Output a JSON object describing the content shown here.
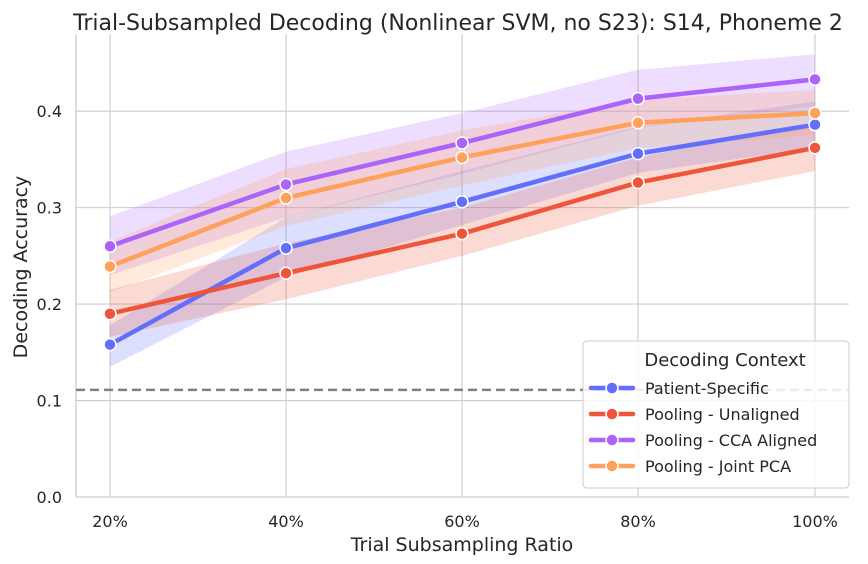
{
  "chart_data": {
    "type": "line",
    "title": "Trial-Subsampled Decoding (Nonlinear SVM, no S23): S14, Phoneme 2",
    "xlabel": "Trial Subsampling Ratio",
    "ylabel": "Decoding Accuracy",
    "categories": [
      "20%",
      "40%",
      "60%",
      "80%",
      "100%"
    ],
    "ylim": [
      0,
      0.48
    ],
    "yticks": [
      0.0,
      0.1,
      0.2,
      0.3,
      0.4
    ],
    "ytick_labels": [
      "0.0",
      "0.1",
      "0.2",
      "0.3",
      "0.4"
    ],
    "grid": true,
    "chance_line": 0.111,
    "legend": {
      "title": "Decoding Context",
      "placement": "lower-right"
    },
    "series": [
      {
        "name": "Patient-Specific",
        "color": "#636EFA",
        "values": [
          0.158,
          0.258,
          0.306,
          0.356,
          0.386
        ],
        "lower": [
          0.135,
          0.228,
          0.282,
          0.336,
          0.362
        ],
        "upper": [
          0.178,
          0.29,
          0.338,
          0.384,
          0.41
        ]
      },
      {
        "name": "Pooling - Unaligned",
        "color": "#EF553B",
        "values": [
          0.19,
          0.232,
          0.273,
          0.326,
          0.362
        ],
        "lower": [
          0.166,
          0.205,
          0.25,
          0.302,
          0.338
        ],
        "upper": [
          0.215,
          0.263,
          0.3,
          0.352,
          0.388
        ]
      },
      {
        "name": "Pooling - CCA Aligned",
        "color": "#AB63FA",
        "values": [
          0.26,
          0.324,
          0.367,
          0.413,
          0.433
        ],
        "lower": [
          0.23,
          0.29,
          0.335,
          0.383,
          0.405
        ],
        "upper": [
          0.291,
          0.358,
          0.398,
          0.443,
          0.459
        ]
      },
      {
        "name": "Pooling - Joint PCA",
        "color": "#FFA15A",
        "values": [
          0.239,
          0.31,
          0.352,
          0.388,
          0.398
        ],
        "lower": [
          0.212,
          0.281,
          0.323,
          0.362,
          0.375
        ],
        "upper": [
          0.265,
          0.34,
          0.38,
          0.412,
          0.422
        ]
      }
    ]
  }
}
